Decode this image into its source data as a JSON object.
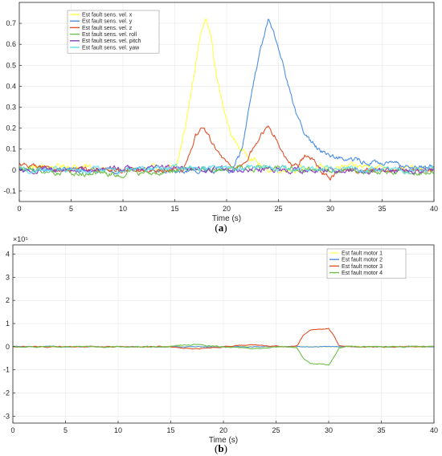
{
  "figure": {
    "caption_a_pre": "(",
    "caption_a": "a",
    "caption_a_post": ")",
    "caption_b_pre": "(",
    "caption_b": "b",
    "caption_b_post": ")"
  },
  "chart_data": [
    {
      "type": "line",
      "xlabel": "Time (s)",
      "xlim": [
        0,
        40
      ],
      "ylim": [
        -0.15,
        0.8
      ],
      "xticks": [
        0,
        5,
        10,
        15,
        20,
        25,
        30,
        35,
        40
      ],
      "yticks": [
        -0.1,
        0,
        0.1,
        0.2,
        0.3,
        0.4,
        0.5,
        0.6,
        0.7
      ],
      "ytick_labels": [
        "-0.1",
        "0",
        "0.1",
        "0.2",
        "0.3",
        "0.4",
        "0.5",
        "0.6",
        "0.7"
      ],
      "grid": true,
      "legend": "top-left",
      "series": [
        {
          "name": "Est fault sens. vel. x",
          "color": "#ffff44",
          "base": [
            [
              0,
              0.01
            ],
            [
              5,
              0.02
            ],
            [
              10,
              0.0
            ],
            [
              15,
              0.01
            ],
            [
              15.2,
              0.02
            ],
            [
              16,
              0.2
            ],
            [
              17,
              0.5
            ],
            [
              17.5,
              0.65
            ],
            [
              18,
              0.74
            ],
            [
              18.5,
              0.64
            ],
            [
              19,
              0.45
            ],
            [
              19.8,
              0.27
            ],
            [
              20.5,
              0.16
            ],
            [
              21.5,
              0.09
            ],
            [
              22.5,
              0.06
            ],
            [
              23.3,
              0.02
            ],
            [
              24,
              0.0
            ],
            [
              30,
              0.01
            ],
            [
              34,
              0.02
            ],
            [
              40,
              0.0
            ]
          ],
          "noise": 0.012
        },
        {
          "name": "Est fault sens. vel. y",
          "color": "#4d8fe6",
          "base": [
            [
              0,
              0.0
            ],
            [
              20.5,
              0.0
            ],
            [
              21.5,
              0.1
            ],
            [
              22,
              0.25
            ],
            [
              22.7,
              0.45
            ],
            [
              23.5,
              0.62
            ],
            [
              24,
              0.71
            ],
            [
              24.5,
              0.66
            ],
            [
              25.5,
              0.5
            ],
            [
              26.5,
              0.3
            ],
            [
              27.5,
              0.17
            ],
            [
              28.5,
              0.12
            ],
            [
              29.5,
              0.08
            ],
            [
              31,
              0.06
            ],
            [
              33,
              0.04
            ],
            [
              35,
              0.03
            ],
            [
              40,
              0.01
            ]
          ],
          "noise": 0.012
        },
        {
          "name": "Est fault sens. vel. z",
          "color": "#e0522a",
          "base": [
            [
              0,
              0.03
            ],
            [
              4,
              0.0
            ],
            [
              15,
              0.0
            ],
            [
              15.8,
              0.0
            ],
            [
              16.3,
              0.06
            ],
            [
              17,
              0.16
            ],
            [
              17.7,
              0.2
            ],
            [
              18.3,
              0.17
            ],
            [
              19,
              0.09
            ],
            [
              20,
              0.03
            ],
            [
              21,
              0.01
            ],
            [
              21.8,
              0.03
            ],
            [
              22.5,
              0.1
            ],
            [
              23.3,
              0.17
            ],
            [
              24,
              0.2
            ],
            [
              24.7,
              0.16
            ],
            [
              25.5,
              0.08
            ],
            [
              26.3,
              0.02
            ],
            [
              27,
              0.03
            ],
            [
              27.7,
              0.07
            ],
            [
              28.3,
              0.05
            ],
            [
              29,
              0.0
            ],
            [
              30,
              -0.04
            ],
            [
              31,
              0.0
            ],
            [
              40,
              0.0
            ]
          ],
          "noise": 0.01
        },
        {
          "name": "Est fault sens. vel. roll",
          "color": "#6cc04a",
          "base": [
            [
              0,
              0.0
            ],
            [
              10,
              -0.02
            ],
            [
              15,
              0.0
            ],
            [
              25,
              0.01
            ],
            [
              30,
              0.0
            ],
            [
              40,
              -0.01
            ]
          ],
          "noise": 0.012
        },
        {
          "name": "Est fault sens. vel. pitch",
          "color": "#8a3fbf",
          "base": [
            [
              0,
              0.0
            ],
            [
              15,
              0.01
            ],
            [
              25,
              0.0
            ],
            [
              40,
              0.0
            ]
          ],
          "noise": 0.012
        },
        {
          "name": "Est fault sens. vel. yaw",
          "color": "#66e0f0",
          "base": [
            [
              0,
              0.0
            ],
            [
              20,
              0.01
            ],
            [
              40,
              0.0
            ]
          ],
          "noise": 0.012
        }
      ]
    },
    {
      "type": "line",
      "xlabel": "Time (s)",
      "xlim": [
        0,
        40
      ],
      "ylim": [
        -3.3,
        4.4
      ],
      "y_exponent": "×10⁵",
      "xticks": [
        0,
        5,
        10,
        15,
        20,
        25,
        30,
        35,
        40
      ],
      "yticks": [
        -3,
        -2,
        -1,
        0,
        1,
        2,
        3,
        4
      ],
      "ytick_labels": [
        "-3",
        "-2",
        "-1",
        "0",
        "1",
        "2",
        "3",
        "4"
      ],
      "grid": true,
      "legend": "top-right",
      "series": [
        {
          "name": "Est fault motor 1",
          "color": "#ffff66",
          "base": [
            [
              0,
              0
            ],
            [
              40,
              0
            ]
          ],
          "noise": 0.015
        },
        {
          "name": "Est fault motor 2",
          "color": "#4d8fe6",
          "base": [
            [
              0,
              0
            ],
            [
              40,
              0
            ]
          ],
          "noise": 0.015
        },
        {
          "name": "Est fault motor 3",
          "color": "#e0522a",
          "base": [
            [
              0,
              0
            ],
            [
              15,
              0
            ],
            [
              16,
              -0.06
            ],
            [
              17.5,
              -0.1
            ],
            [
              18.5,
              -0.05
            ],
            [
              20,
              0
            ],
            [
              21.5,
              0.06
            ],
            [
              23,
              0.08
            ],
            [
              24.5,
              0.03
            ],
            [
              26,
              0
            ],
            [
              27,
              0.05
            ],
            [
              27.6,
              0.5
            ],
            [
              28.3,
              0.72
            ],
            [
              30,
              0.78
            ],
            [
              30.5,
              0.45
            ],
            [
              31,
              0.05
            ],
            [
              31.5,
              0
            ],
            [
              40,
              0
            ]
          ],
          "noise": 0.02
        },
        {
          "name": "Est fault motor 4",
          "color": "#6cc04a",
          "base": [
            [
              0,
              0
            ],
            [
              15,
              0
            ],
            [
              16,
              0.06
            ],
            [
              17.5,
              0.1
            ],
            [
              18.5,
              0.05
            ],
            [
              20,
              0
            ],
            [
              21.5,
              -0.06
            ],
            [
              23,
              -0.08
            ],
            [
              24.5,
              -0.03
            ],
            [
              26,
              0
            ],
            [
              27,
              -0.05
            ],
            [
              27.6,
              -0.5
            ],
            [
              28.3,
              -0.72
            ],
            [
              30,
              -0.78
            ],
            [
              30.5,
              -0.45
            ],
            [
              31,
              -0.05
            ],
            [
              31.5,
              0
            ],
            [
              40,
              0
            ]
          ],
          "noise": 0.02
        }
      ]
    }
  ]
}
